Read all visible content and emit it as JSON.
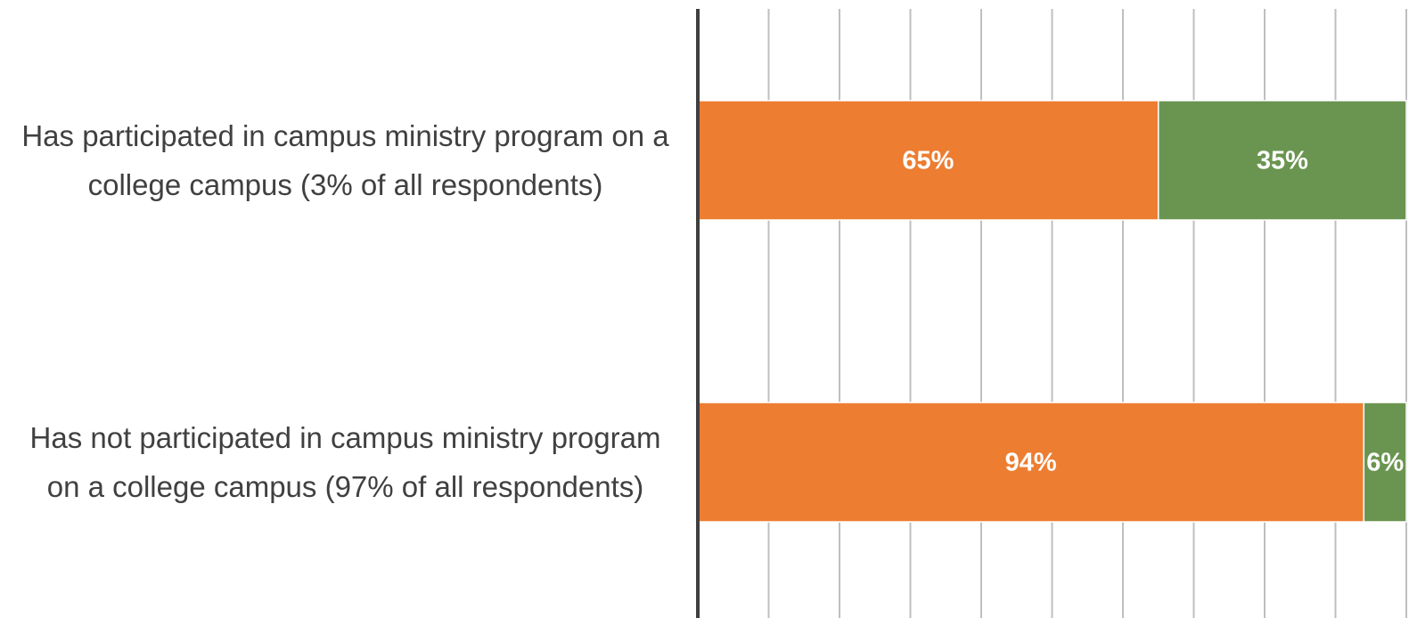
{
  "chart_data": {
    "type": "stacked-barh",
    "categories": [
      "Has participated in campus ministry program on a college campus (3% of all respondents)",
      "Has not participated in campus ministry program on a college campus (97% of all respondents)"
    ],
    "series": [
      {
        "color": "#ED7D31",
        "values": [
          65,
          94
        ],
        "value_labels": [
          "65%",
          "94%"
        ]
      },
      {
        "color": "#6A9550",
        "values": [
          35,
          6
        ],
        "value_labels": [
          "35%",
          "6%"
        ]
      }
    ],
    "xlim": [
      0,
      100
    ],
    "xticks": [
      0,
      10,
      20,
      30,
      40,
      50,
      60,
      70,
      80,
      90,
      100
    ],
    "grid": true
  }
}
